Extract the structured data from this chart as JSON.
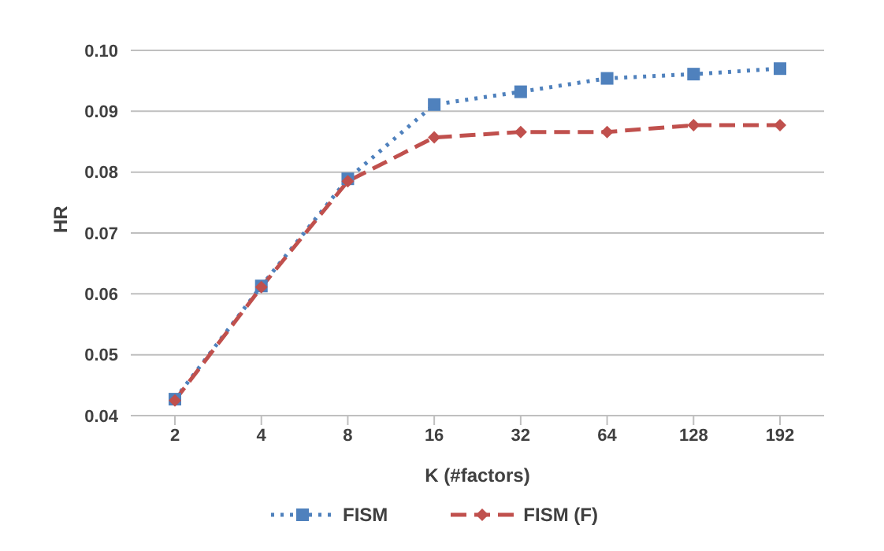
{
  "chart_data": {
    "type": "line",
    "xlabel": "K (#factors)",
    "ylabel": "HR",
    "categories": [
      "2",
      "4",
      "8",
      "16",
      "32",
      "64",
      "128",
      "192"
    ],
    "series": [
      {
        "name": "FISM",
        "color": "#4f81bd",
        "marker": "square",
        "line_style": "dotted",
        "values": [
          0.0427,
          0.0613,
          0.0789,
          0.0911,
          0.0932,
          0.0954,
          0.0961,
          0.097
        ]
      },
      {
        "name": "FISM (F)",
        "color": "#c0504d",
        "marker": "diamond",
        "line_style": "dashed",
        "values": [
          0.0425,
          0.0611,
          0.0785,
          0.0857,
          0.0866,
          0.0866,
          0.0877,
          0.0877
        ]
      }
    ],
    "ylim": [
      0.04,
      0.1
    ],
    "yticks": [
      0.04,
      0.05,
      0.06,
      0.07,
      0.08,
      0.09,
      {
        "value": 0.1,
        "label": "0.10"
      }
    ],
    "grid": "y",
    "legend": "bottom"
  }
}
